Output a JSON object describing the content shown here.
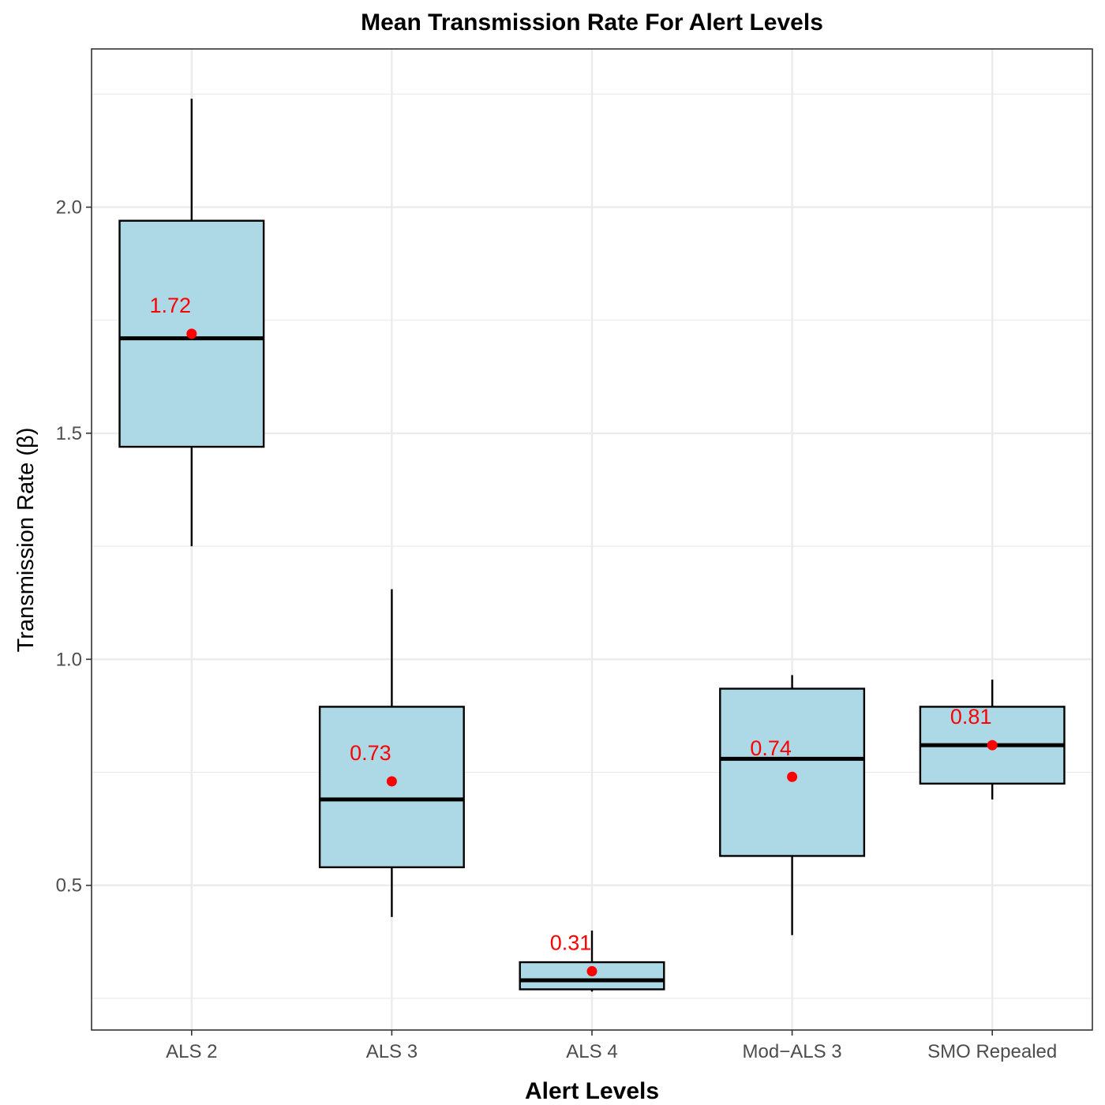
{
  "chart_data": {
    "type": "box",
    "title": "Mean Transmission Rate For Alert Levels",
    "xlabel": "Alert Levels",
    "ylabel": "Transmission Rate (β)",
    "categories": [
      "ALS 2",
      "ALS 3",
      "ALS 4",
      "Mod−ALS 3",
      "SMO Repealed"
    ],
    "ylim": [
      0.18,
      2.35
    ],
    "y_ticks": [
      0.5,
      1.0,
      1.5,
      2.0
    ],
    "y_tick_labels": [
      "0.5",
      "1.0",
      "1.5",
      "2.0"
    ],
    "grid": true,
    "boxes": [
      {
        "category": "ALS 2",
        "whisker_low": 1.25,
        "q1": 1.47,
        "median": 1.71,
        "q3": 1.97,
        "whisker_high": 2.24,
        "mean": 1.72,
        "mean_label": "1.72"
      },
      {
        "category": "ALS 3",
        "whisker_low": 0.43,
        "q1": 0.54,
        "median": 0.69,
        "q3": 0.895,
        "whisker_high": 1.155,
        "mean": 0.73,
        "mean_label": "0.73"
      },
      {
        "category": "ALS 4",
        "whisker_low": 0.265,
        "q1": 0.27,
        "median": 0.29,
        "q3": 0.33,
        "whisker_high": 0.4,
        "mean": 0.31,
        "mean_label": "0.31"
      },
      {
        "category": "Mod−ALS 3",
        "whisker_low": 0.39,
        "q1": 0.565,
        "median": 0.78,
        "q3": 0.935,
        "whisker_high": 0.965,
        "mean": 0.74,
        "mean_label": "0.74"
      },
      {
        "category": "SMO Repealed",
        "whisker_low": 0.69,
        "q1": 0.725,
        "median": 0.81,
        "q3": 0.895,
        "whisker_high": 0.955,
        "mean": 0.81,
        "mean_label": "0.81"
      }
    ],
    "colors": {
      "box_fill": "#add8e6",
      "box_stroke": "#000000",
      "mean_point": "#ff0000",
      "mean_label": "#ff0000",
      "grid": "#ebebeb",
      "panel_border": "#333333"
    }
  }
}
